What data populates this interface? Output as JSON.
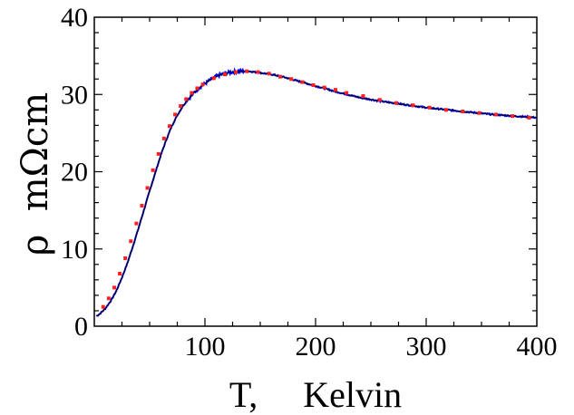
{
  "chart_data": {
    "type": "line",
    "xlabel": "T,     Kelvin",
    "ylabel": "ρ  mΩcm",
    "xlim": [
      0,
      400
    ],
    "ylim": [
      0,
      40
    ],
    "x_ticks": [
      100,
      200,
      300,
      400
    ],
    "y_ticks": [
      0,
      10,
      20,
      30,
      40
    ],
    "x_tick_labels": [
      "100",
      "200",
      "300",
      "400"
    ],
    "y_tick_labels": [
      "0",
      "10",
      "20",
      "30",
      "40"
    ],
    "grid": false,
    "legend": "none",
    "series": [
      {
        "style": "blue noisy line",
        "color": "#0000ff",
        "x": [
          2,
          5,
          10,
          15,
          20,
          25,
          30,
          35,
          40,
          45,
          50,
          55,
          60,
          65,
          70,
          75,
          80,
          85,
          90,
          95,
          100,
          105,
          110,
          115,
          120,
          125,
          130,
          135,
          140,
          150,
          160,
          170,
          180,
          190,
          200,
          220,
          240,
          260,
          280,
          300,
          320,
          340,
          360,
          380,
          400
        ],
        "y": [
          1.3,
          1.6,
          2.3,
          3.3,
          4.6,
          6.3,
          8.2,
          10.4,
          12.7,
          15.1,
          17.5,
          19.8,
          22.1,
          24.1,
          25.9,
          27.3,
          28.5,
          29.4,
          30.2,
          30.9,
          31.4,
          31.9,
          32.3,
          32.6,
          32.8,
          32.9,
          33.0,
          33.0,
          33.0,
          32.8,
          32.6,
          32.3,
          31.9,
          31.5,
          31.1,
          30.3,
          29.6,
          29.1,
          28.7,
          28.3,
          28.0,
          27.7,
          27.4,
          27.2,
          27.0
        ]
      },
      {
        "style": "black solid fit line",
        "color": "#000000",
        "x": [
          2,
          5,
          10,
          15,
          20,
          25,
          30,
          35,
          40,
          45,
          50,
          55,
          60,
          65,
          70,
          75,
          80,
          85,
          90,
          95,
          100,
          105,
          110,
          115,
          120,
          125,
          130,
          135,
          140,
          150,
          160,
          170,
          180,
          190,
          200,
          220,
          240,
          260,
          280,
          300,
          320,
          340,
          360,
          380,
          400
        ],
        "y": [
          1.3,
          1.6,
          2.3,
          3.3,
          4.6,
          6.3,
          8.2,
          10.4,
          12.7,
          15.1,
          17.5,
          19.8,
          22.1,
          24.1,
          25.9,
          27.3,
          28.5,
          29.4,
          30.2,
          30.9,
          31.4,
          31.9,
          32.3,
          32.6,
          32.8,
          32.9,
          33.0,
          33.0,
          33.0,
          32.8,
          32.6,
          32.3,
          31.9,
          31.5,
          31.1,
          30.3,
          29.6,
          29.1,
          28.7,
          28.3,
          28.0,
          27.7,
          27.4,
          27.2,
          27.0
        ]
      },
      {
        "style": "red dotted markers",
        "color": "#ff2020",
        "x": [
          8,
          13,
          18,
          23,
          28,
          33,
          38,
          43,
          48,
          53,
          58,
          63,
          68,
          73,
          78,
          83,
          88,
          93,
          98,
          108,
          118,
          128,
          138,
          148,
          158,
          168,
          178,
          188,
          198,
          208,
          218,
          228,
          243,
          258,
          273,
          288,
          303,
          318,
          333,
          348,
          363,
          378,
          393
        ],
        "y": [
          2.5,
          3.6,
          5.0,
          6.8,
          8.8,
          11.0,
          13.3,
          15.6,
          17.9,
          20.2,
          22.3,
          24.3,
          25.9,
          27.4,
          28.5,
          29.4,
          30.2,
          30.8,
          31.3,
          32.1,
          32.6,
          32.9,
          33.0,
          32.9,
          32.7,
          32.3,
          32.0,
          31.6,
          31.2,
          30.9,
          30.6,
          30.2,
          29.8,
          29.3,
          28.9,
          28.6,
          28.3,
          28.0,
          27.8,
          27.6,
          27.4,
          27.2,
          27.0
        ]
      }
    ]
  }
}
